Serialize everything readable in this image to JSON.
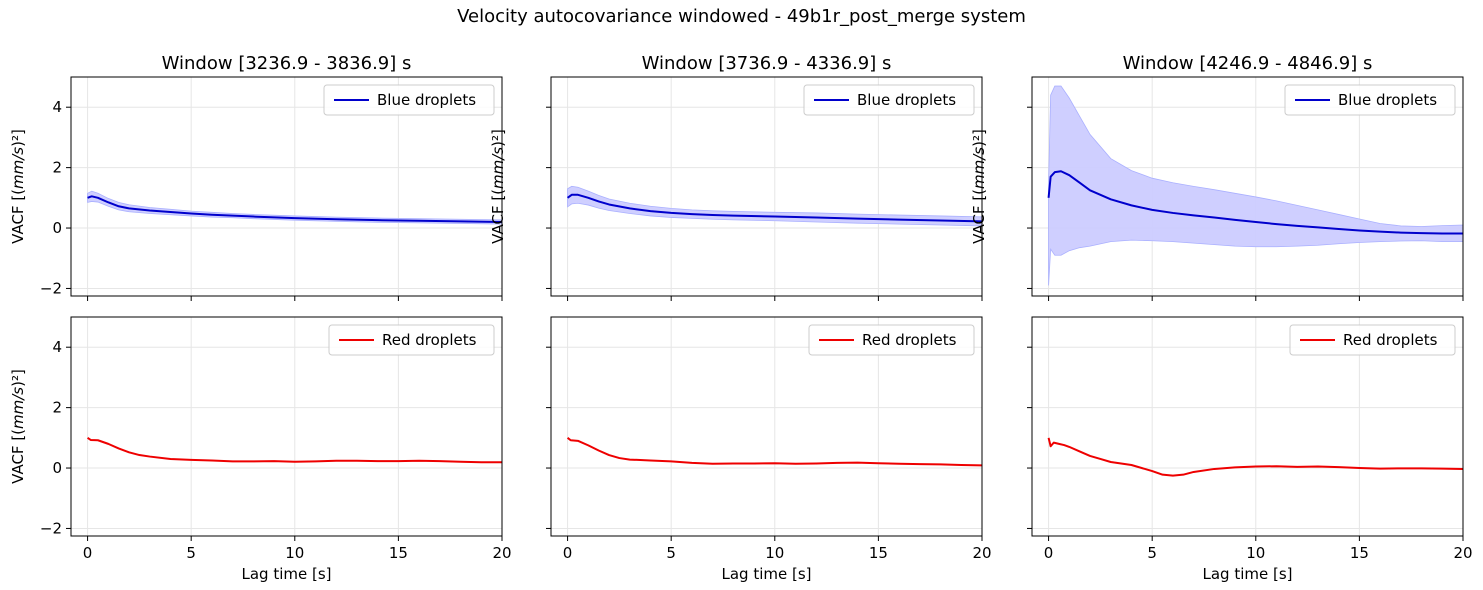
{
  "figure": {
    "suptitle": "Velocity autocovariance windowed - 49b1r_post_merge system"
  },
  "chart_data": [
    {
      "type": "line",
      "row": 0,
      "col": 0,
      "title": "Window [3236.9 - 3836.9] s",
      "ylabel": "VACF [(mm/s)²]",
      "xlabel": "",
      "xlim": [
        -0.8,
        20
      ],
      "ylim": [
        -2.25,
        5.0
      ],
      "xticks": [
        0,
        5,
        10,
        15,
        20
      ],
      "yticks": [
        -2,
        0,
        2,
        4
      ],
      "grid": true,
      "legend_placement": "upper right",
      "series": [
        {
          "name": "Blue droplets",
          "color": "#0000cc",
          "band_color": "#ccccff",
          "x": [
            0,
            0.2,
            0.5,
            1,
            1.5,
            2,
            3,
            4,
            5,
            6,
            7,
            8,
            10,
            12,
            14,
            16,
            18,
            20
          ],
          "y": [
            1.0,
            1.05,
            1.0,
            0.85,
            0.72,
            0.65,
            0.58,
            0.53,
            0.48,
            0.44,
            0.41,
            0.38,
            0.33,
            0.29,
            0.26,
            0.24,
            0.22,
            0.2
          ],
          "upper": [
            1.15,
            1.22,
            1.15,
            0.98,
            0.85,
            0.77,
            0.68,
            0.62,
            0.56,
            0.52,
            0.48,
            0.45,
            0.4,
            0.36,
            0.33,
            0.31,
            0.29,
            0.27
          ],
          "lower": [
            0.85,
            0.88,
            0.86,
            0.72,
            0.6,
            0.54,
            0.48,
            0.44,
            0.4,
            0.36,
            0.34,
            0.31,
            0.26,
            0.22,
            0.19,
            0.17,
            0.15,
            0.13
          ]
        }
      ]
    },
    {
      "type": "line",
      "row": 0,
      "col": 1,
      "title": "Window [3736.9 - 4336.9] s",
      "ylabel": "VACF [(mm/s)²]",
      "xlabel": "",
      "xlim": [
        -0.8,
        20
      ],
      "ylim": [
        -2.25,
        5.0
      ],
      "xticks": [
        0,
        5,
        10,
        15,
        20
      ],
      "yticks": [
        -2,
        0,
        2,
        4
      ],
      "grid": true,
      "legend_placement": "upper right",
      "series": [
        {
          "name": "Blue droplets",
          "color": "#0000cc",
          "band_color": "#ccccff",
          "x": [
            0,
            0.2,
            0.5,
            1,
            1.5,
            2,
            3,
            4,
            5,
            6,
            7,
            8,
            10,
            12,
            14,
            16,
            18,
            20
          ],
          "y": [
            1.0,
            1.1,
            1.1,
            1.0,
            0.88,
            0.78,
            0.65,
            0.56,
            0.5,
            0.46,
            0.43,
            0.41,
            0.38,
            0.35,
            0.31,
            0.28,
            0.25,
            0.22
          ],
          "upper": [
            1.3,
            1.38,
            1.35,
            1.22,
            1.08,
            0.96,
            0.82,
            0.72,
            0.65,
            0.6,
            0.57,
            0.55,
            0.52,
            0.5,
            0.46,
            0.43,
            0.4,
            0.37
          ],
          "lower": [
            0.7,
            0.8,
            0.82,
            0.76,
            0.66,
            0.58,
            0.48,
            0.4,
            0.35,
            0.32,
            0.29,
            0.27,
            0.24,
            0.2,
            0.16,
            0.13,
            0.1,
            0.07
          ]
        }
      ]
    },
    {
      "type": "line",
      "row": 0,
      "col": 2,
      "title": "Window [4246.9 - 4846.9] s",
      "ylabel": "VACF [(mm/s)²]",
      "xlabel": "",
      "xlim": [
        -0.8,
        20
      ],
      "ylim": [
        -2.25,
        5.0
      ],
      "xticks": [
        0,
        5,
        10,
        15,
        20
      ],
      "yticks": [
        -2,
        0,
        2,
        4
      ],
      "grid": true,
      "legend_placement": "upper right",
      "series": [
        {
          "name": "Blue droplets",
          "color": "#0000cc",
          "band_color": "#ccccff",
          "x": [
            0,
            0.1,
            0.3,
            0.6,
            1,
            1.5,
            2,
            3,
            4,
            5,
            6,
            7,
            8,
            9,
            10,
            11,
            12,
            13,
            14,
            15,
            16,
            17,
            18,
            19,
            20
          ],
          "y": [
            1.0,
            1.7,
            1.85,
            1.88,
            1.75,
            1.5,
            1.25,
            0.95,
            0.75,
            0.6,
            0.5,
            0.42,
            0.35,
            0.27,
            0.2,
            0.13,
            0.07,
            0.02,
            -0.03,
            -0.08,
            -0.12,
            -0.15,
            -0.17,
            -0.18,
            -0.18
          ],
          "upper": [
            1.5,
            4.4,
            4.7,
            4.7,
            4.3,
            3.7,
            3.1,
            2.3,
            1.9,
            1.65,
            1.5,
            1.38,
            1.27,
            1.15,
            1.03,
            0.9,
            0.75,
            0.6,
            0.45,
            0.3,
            0.15,
            0.07,
            0.05,
            0.08,
            0.1
          ],
          "lower": [
            -1.9,
            -0.7,
            -0.9,
            -0.9,
            -0.75,
            -0.65,
            -0.6,
            -0.45,
            -0.4,
            -0.42,
            -0.45,
            -0.5,
            -0.55,
            -0.6,
            -0.62,
            -0.62,
            -0.6,
            -0.57,
            -0.52,
            -0.48,
            -0.45,
            -0.43,
            -0.42,
            -0.45,
            -0.45
          ]
        }
      ]
    },
    {
      "type": "line",
      "row": 1,
      "col": 0,
      "title": "",
      "ylabel": "VACF [(mm/s)²]",
      "xlabel": "Lag time [s]",
      "xlim": [
        -0.8,
        20
      ],
      "ylim": [
        -2.25,
        5.0
      ],
      "xticks": [
        0,
        5,
        10,
        15,
        20
      ],
      "yticks": [
        -2,
        0,
        2,
        4
      ],
      "grid": true,
      "legend_placement": "upper right",
      "series": [
        {
          "name": "Red droplets",
          "color": "#ee0000",
          "x": [
            0,
            0.15,
            0.5,
            1,
            1.5,
            2,
            2.5,
            3,
            4,
            5,
            6,
            7,
            8,
            9,
            10,
            11,
            12,
            13,
            14,
            15,
            16,
            17,
            18,
            19,
            20
          ],
          "y": [
            1.0,
            0.93,
            0.92,
            0.8,
            0.65,
            0.52,
            0.43,
            0.38,
            0.3,
            0.27,
            0.25,
            0.22,
            0.22,
            0.23,
            0.21,
            0.22,
            0.24,
            0.24,
            0.23,
            0.23,
            0.24,
            0.23,
            0.21,
            0.19,
            0.19
          ]
        }
      ]
    },
    {
      "type": "line",
      "row": 1,
      "col": 1,
      "title": "",
      "ylabel": "",
      "xlabel": "Lag time [s]",
      "xlim": [
        -0.8,
        20
      ],
      "ylim": [
        -2.25,
        5.0
      ],
      "xticks": [
        0,
        5,
        10,
        15,
        20
      ],
      "yticks": [
        -2,
        0,
        2,
        4
      ],
      "grid": true,
      "legend_placement": "upper right",
      "series": [
        {
          "name": "Red droplets",
          "color": "#ee0000",
          "x": [
            0,
            0.15,
            0.5,
            1,
            1.5,
            2,
            2.5,
            3,
            4,
            5,
            6,
            7,
            8,
            9,
            10,
            11,
            12,
            13,
            14,
            15,
            16,
            17,
            18,
            19,
            20
          ],
          "y": [
            1.0,
            0.92,
            0.9,
            0.75,
            0.58,
            0.43,
            0.33,
            0.28,
            0.25,
            0.22,
            0.17,
            0.14,
            0.15,
            0.15,
            0.16,
            0.14,
            0.15,
            0.17,
            0.18,
            0.16,
            0.14,
            0.13,
            0.12,
            0.1,
            0.09
          ]
        }
      ]
    },
    {
      "type": "line",
      "row": 1,
      "col": 2,
      "title": "",
      "ylabel": "",
      "xlabel": "Lag time [s]",
      "xlim": [
        -0.8,
        20
      ],
      "ylim": [
        -2.25,
        5.0
      ],
      "xticks": [
        0,
        5,
        10,
        15,
        20
      ],
      "yticks": [
        -2,
        0,
        2,
        4
      ],
      "grid": true,
      "legend_placement": "upper right",
      "series": [
        {
          "name": "Red droplets",
          "color": "#ee0000",
          "x": [
            0,
            0.1,
            0.25,
            0.5,
            0.75,
            1,
            1.5,
            2,
            2.5,
            3,
            4,
            5,
            5.5,
            6,
            6.5,
            7,
            8,
            9,
            10,
            11,
            12,
            13,
            14,
            15,
            16,
            17,
            18,
            19,
            20
          ],
          "y": [
            1.0,
            0.72,
            0.84,
            0.8,
            0.76,
            0.7,
            0.55,
            0.4,
            0.3,
            0.2,
            0.1,
            -0.1,
            -0.22,
            -0.25,
            -0.22,
            -0.13,
            -0.03,
            0.02,
            0.05,
            0.06,
            0.04,
            0.05,
            0.03,
            0.0,
            -0.02,
            -0.01,
            -0.01,
            -0.02,
            -0.03
          ]
        }
      ]
    }
  ]
}
